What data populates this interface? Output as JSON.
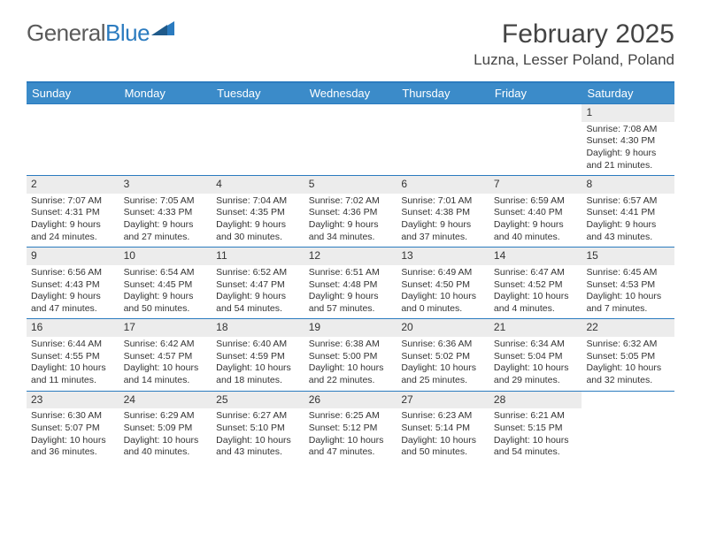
{
  "logo": {
    "part1": "General",
    "part2": "Blue"
  },
  "title": "February 2025",
  "location": "Luzna, Lesser Poland, Poland",
  "colors": {
    "header_bar": "#3b8bc9",
    "border": "#2b7bbf",
    "daynum_bg": "#ececec",
    "text": "#333333",
    "logo_gray": "#5a5a5a",
    "logo_blue": "#2b7bbf",
    "white": "#ffffff"
  },
  "day_headers": [
    "Sunday",
    "Monday",
    "Tuesday",
    "Wednesday",
    "Thursday",
    "Friday",
    "Saturday"
  ],
  "weeks": [
    [
      {
        "n": "",
        "sr": "",
        "ss": "",
        "dl": ""
      },
      {
        "n": "",
        "sr": "",
        "ss": "",
        "dl": ""
      },
      {
        "n": "",
        "sr": "",
        "ss": "",
        "dl": ""
      },
      {
        "n": "",
        "sr": "",
        "ss": "",
        "dl": ""
      },
      {
        "n": "",
        "sr": "",
        "ss": "",
        "dl": ""
      },
      {
        "n": "",
        "sr": "",
        "ss": "",
        "dl": ""
      },
      {
        "n": "1",
        "sr": "Sunrise: 7:08 AM",
        "ss": "Sunset: 4:30 PM",
        "dl": "Daylight: 9 hours and 21 minutes."
      }
    ],
    [
      {
        "n": "2",
        "sr": "Sunrise: 7:07 AM",
        "ss": "Sunset: 4:31 PM",
        "dl": "Daylight: 9 hours and 24 minutes."
      },
      {
        "n": "3",
        "sr": "Sunrise: 7:05 AM",
        "ss": "Sunset: 4:33 PM",
        "dl": "Daylight: 9 hours and 27 minutes."
      },
      {
        "n": "4",
        "sr": "Sunrise: 7:04 AM",
        "ss": "Sunset: 4:35 PM",
        "dl": "Daylight: 9 hours and 30 minutes."
      },
      {
        "n": "5",
        "sr": "Sunrise: 7:02 AM",
        "ss": "Sunset: 4:36 PM",
        "dl": "Daylight: 9 hours and 34 minutes."
      },
      {
        "n": "6",
        "sr": "Sunrise: 7:01 AM",
        "ss": "Sunset: 4:38 PM",
        "dl": "Daylight: 9 hours and 37 minutes."
      },
      {
        "n": "7",
        "sr": "Sunrise: 6:59 AM",
        "ss": "Sunset: 4:40 PM",
        "dl": "Daylight: 9 hours and 40 minutes."
      },
      {
        "n": "8",
        "sr": "Sunrise: 6:57 AM",
        "ss": "Sunset: 4:41 PM",
        "dl": "Daylight: 9 hours and 43 minutes."
      }
    ],
    [
      {
        "n": "9",
        "sr": "Sunrise: 6:56 AM",
        "ss": "Sunset: 4:43 PM",
        "dl": "Daylight: 9 hours and 47 minutes."
      },
      {
        "n": "10",
        "sr": "Sunrise: 6:54 AM",
        "ss": "Sunset: 4:45 PM",
        "dl": "Daylight: 9 hours and 50 minutes."
      },
      {
        "n": "11",
        "sr": "Sunrise: 6:52 AM",
        "ss": "Sunset: 4:47 PM",
        "dl": "Daylight: 9 hours and 54 minutes."
      },
      {
        "n": "12",
        "sr": "Sunrise: 6:51 AM",
        "ss": "Sunset: 4:48 PM",
        "dl": "Daylight: 9 hours and 57 minutes."
      },
      {
        "n": "13",
        "sr": "Sunrise: 6:49 AM",
        "ss": "Sunset: 4:50 PM",
        "dl": "Daylight: 10 hours and 0 minutes."
      },
      {
        "n": "14",
        "sr": "Sunrise: 6:47 AM",
        "ss": "Sunset: 4:52 PM",
        "dl": "Daylight: 10 hours and 4 minutes."
      },
      {
        "n": "15",
        "sr": "Sunrise: 6:45 AM",
        "ss": "Sunset: 4:53 PM",
        "dl": "Daylight: 10 hours and 7 minutes."
      }
    ],
    [
      {
        "n": "16",
        "sr": "Sunrise: 6:44 AM",
        "ss": "Sunset: 4:55 PM",
        "dl": "Daylight: 10 hours and 11 minutes."
      },
      {
        "n": "17",
        "sr": "Sunrise: 6:42 AM",
        "ss": "Sunset: 4:57 PM",
        "dl": "Daylight: 10 hours and 14 minutes."
      },
      {
        "n": "18",
        "sr": "Sunrise: 6:40 AM",
        "ss": "Sunset: 4:59 PM",
        "dl": "Daylight: 10 hours and 18 minutes."
      },
      {
        "n": "19",
        "sr": "Sunrise: 6:38 AM",
        "ss": "Sunset: 5:00 PM",
        "dl": "Daylight: 10 hours and 22 minutes."
      },
      {
        "n": "20",
        "sr": "Sunrise: 6:36 AM",
        "ss": "Sunset: 5:02 PM",
        "dl": "Daylight: 10 hours and 25 minutes."
      },
      {
        "n": "21",
        "sr": "Sunrise: 6:34 AM",
        "ss": "Sunset: 5:04 PM",
        "dl": "Daylight: 10 hours and 29 minutes."
      },
      {
        "n": "22",
        "sr": "Sunrise: 6:32 AM",
        "ss": "Sunset: 5:05 PM",
        "dl": "Daylight: 10 hours and 32 minutes."
      }
    ],
    [
      {
        "n": "23",
        "sr": "Sunrise: 6:30 AM",
        "ss": "Sunset: 5:07 PM",
        "dl": "Daylight: 10 hours and 36 minutes."
      },
      {
        "n": "24",
        "sr": "Sunrise: 6:29 AM",
        "ss": "Sunset: 5:09 PM",
        "dl": "Daylight: 10 hours and 40 minutes."
      },
      {
        "n": "25",
        "sr": "Sunrise: 6:27 AM",
        "ss": "Sunset: 5:10 PM",
        "dl": "Daylight: 10 hours and 43 minutes."
      },
      {
        "n": "26",
        "sr": "Sunrise: 6:25 AM",
        "ss": "Sunset: 5:12 PM",
        "dl": "Daylight: 10 hours and 47 minutes."
      },
      {
        "n": "27",
        "sr": "Sunrise: 6:23 AM",
        "ss": "Sunset: 5:14 PM",
        "dl": "Daylight: 10 hours and 50 minutes."
      },
      {
        "n": "28",
        "sr": "Sunrise: 6:21 AM",
        "ss": "Sunset: 5:15 PM",
        "dl": "Daylight: 10 hours and 54 minutes."
      },
      {
        "n": "",
        "sr": "",
        "ss": "",
        "dl": ""
      }
    ]
  ]
}
